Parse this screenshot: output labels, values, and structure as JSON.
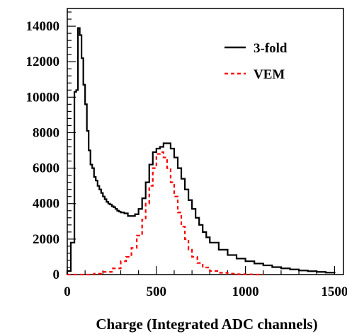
{
  "chart_data": {
    "type": "line",
    "title": "",
    "xlabel": "Charge (Integrated ADC channels)",
    "ylabel": "",
    "xlim": [
      0,
      1550
    ],
    "ylim": [
      0,
      15000
    ],
    "x_ticks": [
      "0",
      "500",
      "1000",
      "1500"
    ],
    "y_ticks": [
      "0",
      "2000",
      "4000",
      "6000",
      "8000",
      "10000",
      "12000",
      "14000"
    ],
    "grid": false,
    "legend_position": "top-right",
    "series": [
      {
        "name": "3-fold",
        "style": "solid",
        "color": "#000000",
        "x": [
          0,
          20,
          40,
          50,
          60,
          70,
          80,
          90,
          100,
          110,
          120,
          130,
          140,
          150,
          160,
          170,
          180,
          190,
          200,
          210,
          220,
          230,
          240,
          250,
          260,
          270,
          280,
          290,
          300,
          320,
          340,
          360,
          380,
          400,
          420,
          440,
          460,
          480,
          500,
          520,
          540,
          560,
          580,
          600,
          620,
          640,
          660,
          680,
          700,
          720,
          740,
          760,
          780,
          800,
          850,
          900,
          950,
          1000,
          1050,
          1100,
          1150,
          1200,
          1250,
          1300,
          1350,
          1400,
          1450,
          1500
        ],
        "y": [
          200,
          1800,
          10300,
          10400,
          13900,
          13500,
          12200,
          10700,
          9600,
          8100,
          7000,
          6200,
          6000,
          5500,
          5300,
          5000,
          4800,
          4600,
          4400,
          4250,
          4100,
          4000,
          3950,
          3850,
          3800,
          3700,
          3600,
          3550,
          3500,
          3450,
          3300,
          3300,
          3400,
          3700,
          4300,
          5200,
          6200,
          6900,
          7100,
          7200,
          7400,
          7400,
          7100,
          6600,
          6000,
          5400,
          4800,
          4200,
          3700,
          3200,
          2800,
          2400,
          2100,
          1800,
          1400,
          1100,
          900,
          750,
          620,
          520,
          420,
          350,
          290,
          230,
          190,
          150,
          110,
          80
        ]
      },
      {
        "name": "VEM",
        "style": "dashed",
        "color": "#ff0000",
        "x": [
          0,
          100,
          150,
          200,
          250,
          300,
          330,
          360,
          390,
          420,
          440,
          460,
          480,
          500,
          520,
          540,
          560,
          580,
          600,
          620,
          640,
          660,
          680,
          700,
          730,
          760,
          800,
          850,
          900,
          950,
          1000,
          1050,
          1100
        ],
        "y": [
          0,
          0,
          50,
          150,
          350,
          750,
          1000,
          1500,
          2200,
          3100,
          4000,
          5000,
          6000,
          6800,
          6900,
          6600,
          6000,
          5200,
          4400,
          3500,
          2700,
          2000,
          1400,
          1000,
          650,
          400,
          200,
          100,
          50,
          20,
          10,
          0,
          0
        ]
      }
    ]
  }
}
